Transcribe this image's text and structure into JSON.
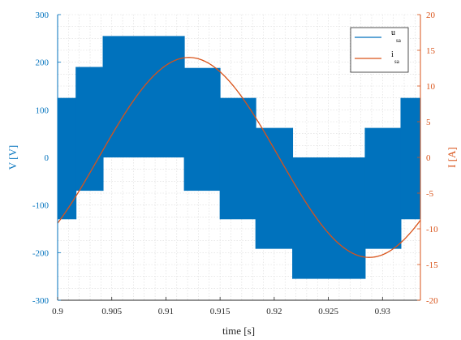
{
  "chart_data": {
    "type": "line",
    "xlabel": "time [s]",
    "ylabel_left": "V [V]",
    "ylabel_right": "I [A]",
    "xlim": [
      0.9,
      0.9335
    ],
    "ylim_left": [
      -300,
      300
    ],
    "ylim_right": [
      -20,
      20
    ],
    "grid": true,
    "legend_position": "top-right",
    "x_ticks": [
      {
        "value": 0.9,
        "label": "0.9"
      },
      {
        "value": 0.905,
        "label": "0.905"
      },
      {
        "value": 0.91,
        "label": "0.91"
      },
      {
        "value": 0.915,
        "label": "0.915"
      },
      {
        "value": 0.92,
        "label": "0.92"
      },
      {
        "value": 0.925,
        "label": "0.925"
      },
      {
        "value": 0.93,
        "label": "0.93"
      }
    ],
    "y_left_ticks": [
      {
        "value": 300,
        "label": "300"
      },
      {
        "value": 200,
        "label": "200"
      },
      {
        "value": 100,
        "label": "100"
      },
      {
        "value": 0,
        "label": "0"
      },
      {
        "value": -100,
        "label": "-100"
      },
      {
        "value": -200,
        "label": "-200"
      },
      {
        "value": -300,
        "label": "-300"
      }
    ],
    "y_right_ticks": [
      {
        "value": 20,
        "label": "20"
      },
      {
        "value": 15,
        "label": "15"
      },
      {
        "value": 10,
        "label": "10"
      },
      {
        "value": 5,
        "label": "5"
      },
      {
        "value": 0,
        "label": "0"
      },
      {
        "value": -5,
        "label": "-5"
      },
      {
        "value": -10,
        "label": "-10"
      },
      {
        "value": -15,
        "label": "-15"
      },
      {
        "value": -20,
        "label": "-20"
      }
    ],
    "series": [
      {
        "name": "u_sa",
        "legend_main": "u",
        "legend_sub": "sa",
        "axis": "left",
        "color": "#0072BD",
        "style": "pwm-envelope",
        "segments": [
          {
            "x0": 0.9,
            "x1": 0.9017,
            "lo": -130,
            "hi": 125
          },
          {
            "x0": 0.9017,
            "x1": 0.9042,
            "lo": -70,
            "hi": 190
          },
          {
            "x0": 0.9042,
            "x1": 0.9117,
            "lo": 0,
            "hi": 255
          },
          {
            "x0": 0.9117,
            "x1": 0.915,
            "lo": -70,
            "hi": 188
          },
          {
            "x0": 0.915,
            "x1": 0.9183,
            "lo": -130,
            "hi": 125
          },
          {
            "x0": 0.9183,
            "x1": 0.9217,
            "lo": -192,
            "hi": 62
          },
          {
            "x0": 0.9217,
            "x1": 0.9284,
            "lo": -255,
            "hi": 0
          },
          {
            "x0": 0.9284,
            "x1": 0.9317,
            "lo": -192,
            "hi": 62
          },
          {
            "x0": 0.9317,
            "x1": 0.9335,
            "lo": -130,
            "hi": 125
          }
        ]
      },
      {
        "name": "i_sa",
        "legend_main": "i",
        "legend_sub": "sa",
        "axis": "right",
        "color": "#D95319",
        "style": "line",
        "amplitude": 14,
        "zero_crossing": 0.9038,
        "period": 0.0333
      }
    ]
  }
}
